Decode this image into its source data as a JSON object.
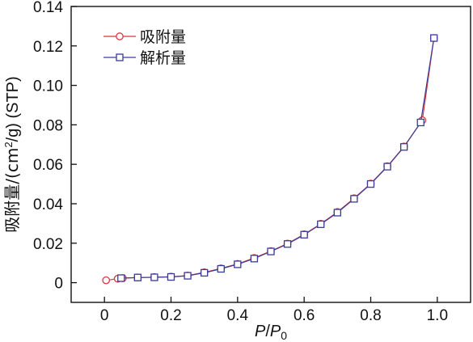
{
  "chart_data": {
    "type": "line",
    "xlabel": {
      "main": "P",
      "sep": "/",
      "sub_base": "P",
      "sub": "0"
    },
    "ylabel": {
      "pre": "吸附量/(cm",
      "sup": "2",
      "post": "/g) (STP)"
    },
    "xlim": [
      -0.1,
      1.1
    ],
    "ylim": [
      -0.01,
      0.14
    ],
    "xticks": [
      0,
      0.2,
      0.4,
      0.6,
      0.8,
      1.0
    ],
    "xtick_labels": [
      "0",
      "0.2",
      "0.4",
      "0.6",
      "0.8",
      "1.0"
    ],
    "yticks": [
      0,
      0.02,
      0.04,
      0.06,
      0.08,
      0.1,
      0.12,
      0.14
    ],
    "ytick_labels": [
      "0",
      "0.02",
      "0.04",
      "0.06",
      "0.08",
      "0.10",
      "0.12",
      "0.14"
    ],
    "legend_position": "top-left",
    "series": [
      {
        "name": "吸附量",
        "color": "#d9363e",
        "marker": "circle",
        "x": [
          0.005,
          0.04,
          0.055,
          0.1,
          0.15,
          0.2,
          0.25,
          0.3,
          0.35,
          0.4,
          0.45,
          0.5,
          0.55,
          0.6,
          0.65,
          0.7,
          0.75,
          0.8,
          0.85,
          0.9,
          0.955,
          0.99
        ],
        "y": [
          0.0012,
          0.002,
          0.0023,
          0.0026,
          0.0028,
          0.003,
          0.0036,
          0.0052,
          0.0072,
          0.0095,
          0.0125,
          0.016,
          0.0198,
          0.0245,
          0.0298,
          0.0358,
          0.0428,
          0.0502,
          0.059,
          0.069,
          0.0823,
          0.124
        ]
      },
      {
        "name": "解析量",
        "color": "#3a3a9a",
        "marker": "square",
        "x": [
          0.05,
          0.1,
          0.15,
          0.2,
          0.25,
          0.3,
          0.35,
          0.4,
          0.45,
          0.5,
          0.55,
          0.6,
          0.65,
          0.7,
          0.75,
          0.8,
          0.85,
          0.9,
          0.95,
          0.99
        ],
        "y": [
          0.0023,
          0.0026,
          0.0027,
          0.0029,
          0.0035,
          0.005,
          0.007,
          0.0093,
          0.0122,
          0.0158,
          0.0196,
          0.0243,
          0.0296,
          0.0355,
          0.0425,
          0.05,
          0.0588,
          0.0688,
          0.0812,
          0.124
        ]
      }
    ]
  }
}
